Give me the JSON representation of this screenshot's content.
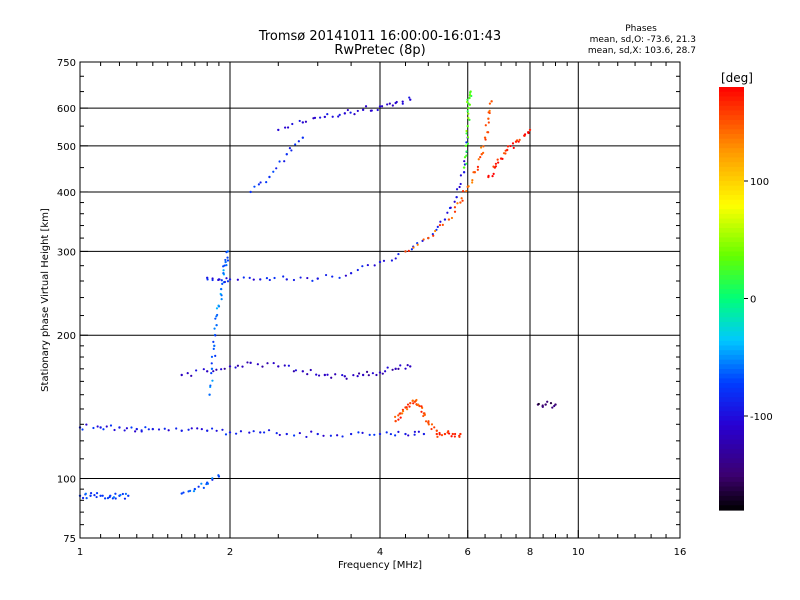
{
  "title": "Tromsø 20141011 16:00:00-16:01:43",
  "subtitle": "RwPretec (8p)",
  "phases_box": {
    "heading": "Phases",
    "line_o": "mean, sd,O: -73.6, 21.3",
    "line_x": "mean, sd,X: 103.6, 28.7"
  },
  "chart_data": {
    "type": "scatter",
    "title": "Tromsø 20141011 16:00:00-16:01:43",
    "subtitle": "RwPretec (8p)",
    "xlabel": "Frequency [MHz]",
    "ylabel": "Stationary phase Virtual Height [km]",
    "xscale": "log",
    "yscale": "log",
    "xlim": [
      1,
      16
    ],
    "ylim": [
      75,
      750
    ],
    "xticks": [
      "1",
      "2",
      "4",
      "6",
      "8",
      "10",
      "16"
    ],
    "xtick_values": [
      1,
      2,
      4,
      6,
      8,
      10,
      16
    ],
    "yticks": [
      "75",
      "100",
      "200",
      "300",
      "400",
      "500",
      "600",
      "750"
    ],
    "ytick_values": [
      75,
      100,
      200,
      300,
      400,
      500,
      600,
      750
    ],
    "grid": true,
    "colorbar": {
      "label": "[deg]",
      "ticks": [
        "100",
        "0",
        "-100"
      ],
      "tick_values": [
        100,
        0,
        -100
      ],
      "range": [
        -180,
        180
      ]
    },
    "series": [
      {
        "traces": [
          {
            "x": [
              1.0,
              1.1,
              1.2,
              1.3,
              1.4,
              1.6,
              1.8,
              2.0,
              2.3,
              2.6,
              3.0,
              3.5,
              4.0,
              4.5,
              4.9
            ],
            "y": [
              128,
              128,
              128,
              127,
              127,
              126,
              126,
              125,
              125,
              124,
              124,
              124,
              124,
              124,
              124
            ],
            "phase": -92
          },
          {
            "x": [
              1.6,
              1.8,
              2.0,
              2.2,
              2.5,
              2.8,
              3.1,
              3.4,
              3.7,
              4.0,
              4.3,
              4.6
            ],
            "y": [
              165,
              168,
              172,
              175,
              172,
              168,
              165,
              164,
              165,
              167,
              170,
              172
            ],
            "phase": -115
          },
          {
            "x": [
              4.3,
              4.4,
              4.5,
              4.6,
              4.7,
              4.8,
              4.9,
              5.0,
              5.2
            ],
            "y": [
              132,
              137,
              141,
              144,
              145,
              142,
              137,
              131,
              126
            ],
            "phase": 155
          },
          {
            "x": [
              5.2,
              5.4,
              5.6,
              5.8
            ],
            "y": [
              124,
              124,
              124,
              124
            ],
            "phase": 165
          },
          {
            "x": [
              1.82,
              1.84,
              1.86,
              1.88,
              1.9,
              1.92,
              1.94,
              1.96,
              1.98
            ],
            "y": [
              150,
              170,
              190,
              210,
              230,
              250,
              270,
              285,
              300
            ],
            "phase": -60
          },
          {
            "x": [
              1.8,
              1.9,
              2.0,
              2.3,
              2.6,
              3.0,
              3.5,
              4.0,
              4.5,
              5.0,
              5.4,
              5.7,
              5.9,
              6.0
            ],
            "y": [
              264,
              262,
              262,
              262,
              262,
              263,
              270,
              285,
              300,
              320,
              350,
              390,
              440,
              520
            ],
            "phase": -95
          },
          {
            "x": [
              4.5,
              5.0,
              5.5,
              5.8,
              6.0,
              6.2,
              6.4,
              6.5,
              6.6,
              6.7
            ],
            "y": [
              300,
              320,
              350,
              380,
              410,
              440,
              480,
              520,
              570,
              620
            ],
            "phase": 150
          },
          {
            "x": [
              5.9,
              5.95,
              6.0,
              6.02,
              6.05,
              6.08
            ],
            "y": [
              450,
              500,
              550,
              600,
              630,
              650
            ],
            "phase": 30
          },
          {
            "x": [
              2.5,
              2.8,
              3.1,
              3.4,
              3.7,
              4.0,
              4.3,
              4.6
            ],
            "y": [
              540,
              560,
              575,
              585,
              595,
              605,
              615,
              625
            ],
            "phase": -105
          },
          {
            "x": [
              2.2,
              2.4,
              2.6,
              2.8
            ],
            "y": [
              400,
              430,
              480,
              520
            ],
            "phase": -80
          },
          {
            "x": [
              1.0,
              1.05,
              1.1,
              1.15,
              1.2,
              1.25
            ],
            "y": [
              92,
              92,
              92,
              92,
              92,
              92
            ],
            "phase": -75
          },
          {
            "x": [
              1.6,
              1.7,
              1.8,
              1.9
            ],
            "y": [
              93,
              95,
              98,
              101
            ],
            "phase": -70
          },
          {
            "x": [
              6.6,
              6.8,
              7.0,
              7.2,
              7.5,
              7.8,
              8.0
            ],
            "y": [
              430,
              450,
              470,
              490,
              510,
              525,
              540
            ],
            "phase": 170
          },
          {
            "x": [
              8.3,
              8.6,
              9.0
            ],
            "y": [
              143,
              143,
              143
            ],
            "phase": -150
          }
        ]
      }
    ]
  }
}
